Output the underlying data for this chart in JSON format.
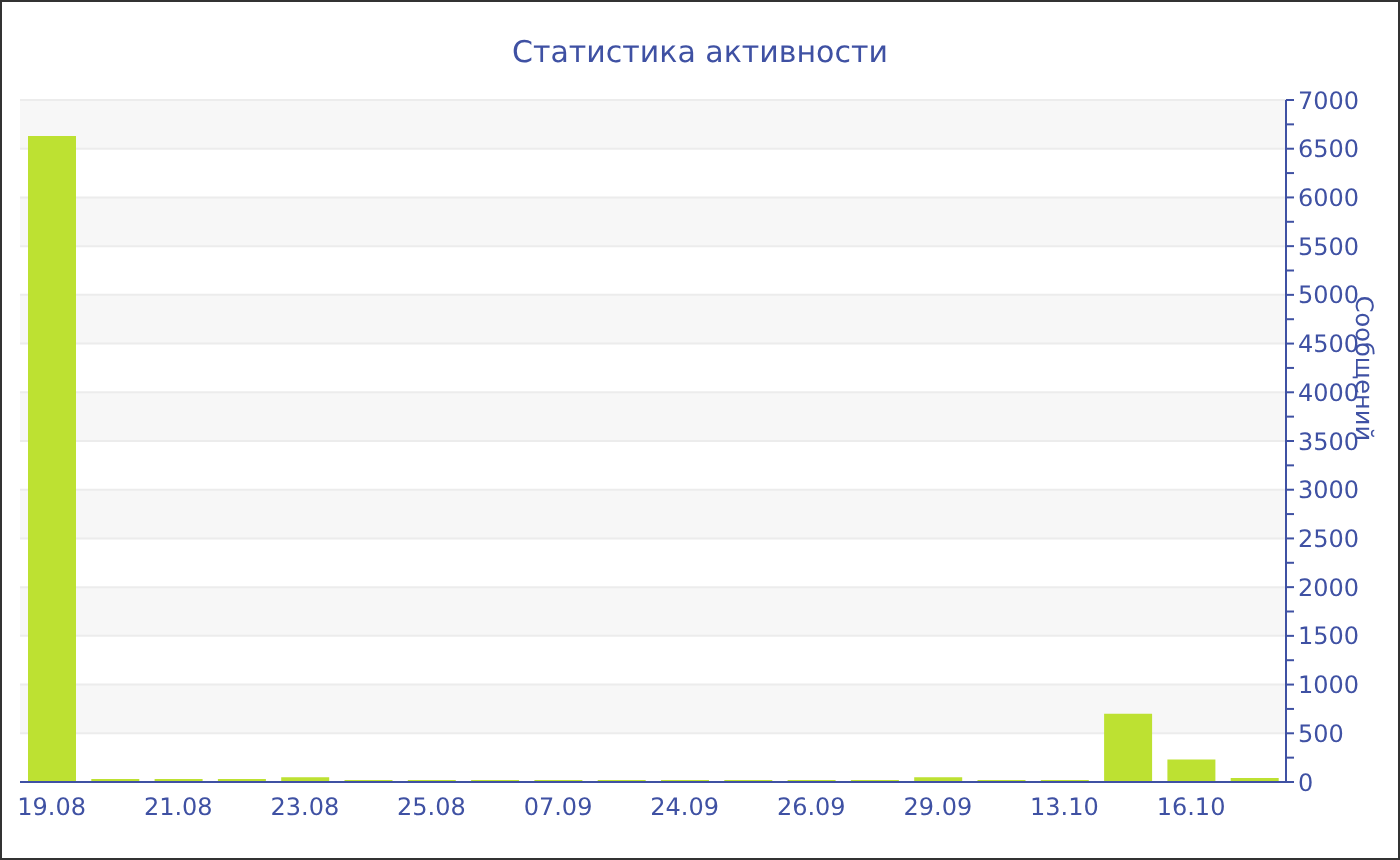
{
  "chart_data": {
    "type": "bar",
    "title": "Статистика активности",
    "y2label": "Сообщений",
    "categories": [
      "19.08",
      null,
      "21.08",
      null,
      "23.08",
      null,
      "25.08",
      null,
      "07.09",
      null,
      "24.09",
      null,
      "26.09",
      null,
      "29.09",
      null,
      "13.10",
      null,
      "16.10",
      null
    ],
    "series": [
      {
        "color": "#bde132",
        "axis": "y2",
        "values": [
          6630,
          30,
          30,
          30,
          50,
          20,
          20,
          20,
          20,
          20,
          20,
          20,
          20,
          20,
          50,
          20,
          20,
          700,
          230,
          40
        ]
      }
    ],
    "y2lim": [
      0,
      7000
    ],
    "y2ticks": [
      0,
      {
        "value": 250,
        "label": null
      },
      500,
      {
        "value": 750,
        "label": null
      },
      1000,
      {
        "value": 1250,
        "label": null
      },
      1500,
      {
        "value": 1750,
        "label": null
      },
      2000,
      {
        "value": 2250,
        "label": null
      },
      2500,
      {
        "value": 2750,
        "label": null
      },
      3000,
      {
        "value": 3250,
        "label": null
      },
      3500,
      {
        "value": 3750,
        "label": null
      },
      4000,
      {
        "value": 4250,
        "label": null
      },
      4500,
      {
        "value": 4750,
        "label": null
      },
      5000,
      {
        "value": 5250,
        "label": null
      },
      5500,
      {
        "value": 5750,
        "label": null
      },
      6000,
      {
        "value": 6250,
        "label": null
      },
      6500,
      {
        "value": 6750,
        "label": null
      },
      7000
    ],
    "grid": "y",
    "legend": false
  }
}
